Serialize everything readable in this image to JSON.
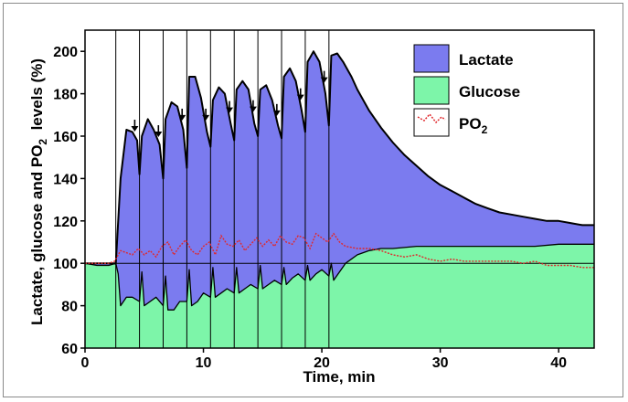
{
  "chart_data": {
    "type": "area",
    "xlabel": "Time, min",
    "ylabel_parts": [
      "Lactate, glucose and PO",
      "2",
      "  levels (%)"
    ],
    "xlim": [
      0,
      43
    ],
    "ylim": [
      60,
      210
    ],
    "x_ticks": [
      0,
      10,
      20,
      30,
      40
    ],
    "y_ticks": [
      60,
      80,
      100,
      120,
      140,
      160,
      180,
      200
    ],
    "grid": false,
    "baseline": 100,
    "legend_position": "top-right",
    "colors": {
      "lactate": "#7b7bef",
      "glucose": "#7df5a9",
      "po2": "#e0282c"
    },
    "legend": [
      {
        "key": "lactate",
        "label": "Lactate",
        "style": "box"
      },
      {
        "key": "glucose",
        "label": "Glucose",
        "style": "box"
      },
      {
        "key": "po2",
        "label_main": "PO",
        "label_sub": "2",
        "style": "dotted-line"
      }
    ],
    "stimulus_times": [
      2.6,
      4.6,
      6.6,
      8.6,
      10.6,
      12.6,
      14.6,
      16.6,
      18.6,
      20.6
    ],
    "arrow_times": [
      4.2,
      6.2,
      8.2,
      10.2,
      12.2,
      14.2,
      16.2,
      18.2,
      20.2
    ],
    "series": [
      {
        "name": "Lactate",
        "x": [
          0,
          1,
          2,
          2.6,
          3.0,
          3.5,
          4.0,
          4.4,
          4.6,
          4.8,
          5.3,
          5.8,
          6.3,
          6.6,
          6.8,
          7.3,
          7.8,
          8.3,
          8.6,
          8.8,
          9.3,
          9.8,
          10.3,
          10.6,
          10.8,
          11.3,
          11.8,
          12.3,
          12.6,
          12.8,
          13.3,
          13.8,
          14.3,
          14.6,
          14.8,
          15.3,
          15.8,
          16.3,
          16.6,
          16.8,
          17.3,
          17.8,
          18.3,
          18.6,
          18.8,
          19.3,
          19.8,
          20.3,
          20.6,
          20.8,
          21.3,
          21.8,
          22.5,
          23,
          24,
          25,
          26,
          27,
          28,
          29,
          30,
          31,
          32,
          33,
          34,
          35,
          36,
          37,
          38,
          39,
          40,
          41,
          42,
          43
        ],
        "values": [
          100,
          100,
          100,
          100,
          140,
          163,
          162,
          158,
          142,
          160,
          168,
          163,
          156,
          140,
          168,
          176,
          174,
          163,
          145,
          188,
          188,
          178,
          162,
          155,
          177,
          183,
          180,
          166,
          158,
          182,
          186,
          182,
          166,
          160,
          182,
          184,
          177,
          165,
          159,
          188,
          192,
          186,
          172,
          162,
          195,
          200,
          195,
          180,
          165,
          198,
          199,
          195,
          188,
          182,
          172,
          164,
          157,
          151,
          146,
          141,
          137,
          134,
          131,
          128,
          126,
          124,
          123,
          122,
          121,
          120,
          120,
          119,
          118,
          118
        ]
      },
      {
        "name": "Glucose",
        "x": [
          0,
          1,
          2,
          2.6,
          2.8,
          3.0,
          3.5,
          4.0,
          4.6,
          4.8,
          5.0,
          5.5,
          6.0,
          6.6,
          6.8,
          7.0,
          7.5,
          8.0,
          8.6,
          8.8,
          9.0,
          9.5,
          10.0,
          10.6,
          10.8,
          11.0,
          11.5,
          12.0,
          12.6,
          12.8,
          13.0,
          13.5,
          14.0,
          14.6,
          14.8,
          15.0,
          15.5,
          16.0,
          16.6,
          16.8,
          17.0,
          17.5,
          18.0,
          18.6,
          18.8,
          19.0,
          19.5,
          20.0,
          20.6,
          20.8,
          21.0,
          21.5,
          22.0,
          23,
          24,
          25,
          26,
          28,
          30,
          32,
          34,
          36,
          38,
          40,
          42,
          43
        ],
        "values": [
          100,
          99,
          99,
          100,
          95,
          80,
          84,
          84,
          82,
          96,
          80,
          82,
          84,
          80,
          94,
          78,
          78,
          82,
          82,
          97,
          80,
          82,
          86,
          84,
          98,
          84,
          86,
          88,
          86,
          98,
          86,
          88,
          90,
          88,
          99,
          88,
          90,
          92,
          90,
          98,
          90,
          93,
          95,
          92,
          99,
          92,
          95,
          97,
          94,
          100,
          92,
          96,
          100,
          104,
          106,
          107,
          107,
          108,
          108,
          108,
          108,
          108,
          108,
          109,
          109,
          109
        ]
      },
      {
        "name": "PO2",
        "x": [
          0,
          1,
          2,
          2.5,
          3.0,
          3.5,
          4.0,
          4.5,
          5.0,
          5.5,
          6.0,
          6.5,
          7.0,
          7.5,
          8.0,
          8.5,
          9.0,
          9.5,
          10.0,
          10.5,
          11.0,
          11.5,
          12.0,
          12.5,
          13.0,
          13.5,
          14.0,
          14.5,
          15.0,
          15.5,
          16.0,
          16.5,
          17.0,
          17.5,
          18.0,
          18.5,
          19.0,
          19.5,
          20.0,
          20.5,
          21.0,
          21.5,
          22,
          23,
          24,
          25,
          26,
          27,
          28,
          29,
          30,
          31,
          32,
          33,
          34,
          35,
          36,
          37,
          38,
          39,
          40,
          41,
          42,
          43
        ],
        "values": [
          100,
          100,
          100,
          101,
          106,
          105,
          104,
          107,
          104,
          106,
          103,
          108,
          110,
          104,
          108,
          111,
          106,
          104,
          108,
          110,
          104,
          113,
          109,
          108,
          111,
          106,
          109,
          112,
          108,
          111,
          108,
          113,
          110,
          109,
          113,
          112,
          107,
          114,
          112,
          110,
          114,
          110,
          108,
          107,
          107,
          106,
          104,
          103,
          104,
          102,
          101,
          102,
          101,
          101,
          101,
          101,
          101,
          100,
          101,
          99,
          99,
          99,
          98,
          98
        ]
      }
    ]
  }
}
